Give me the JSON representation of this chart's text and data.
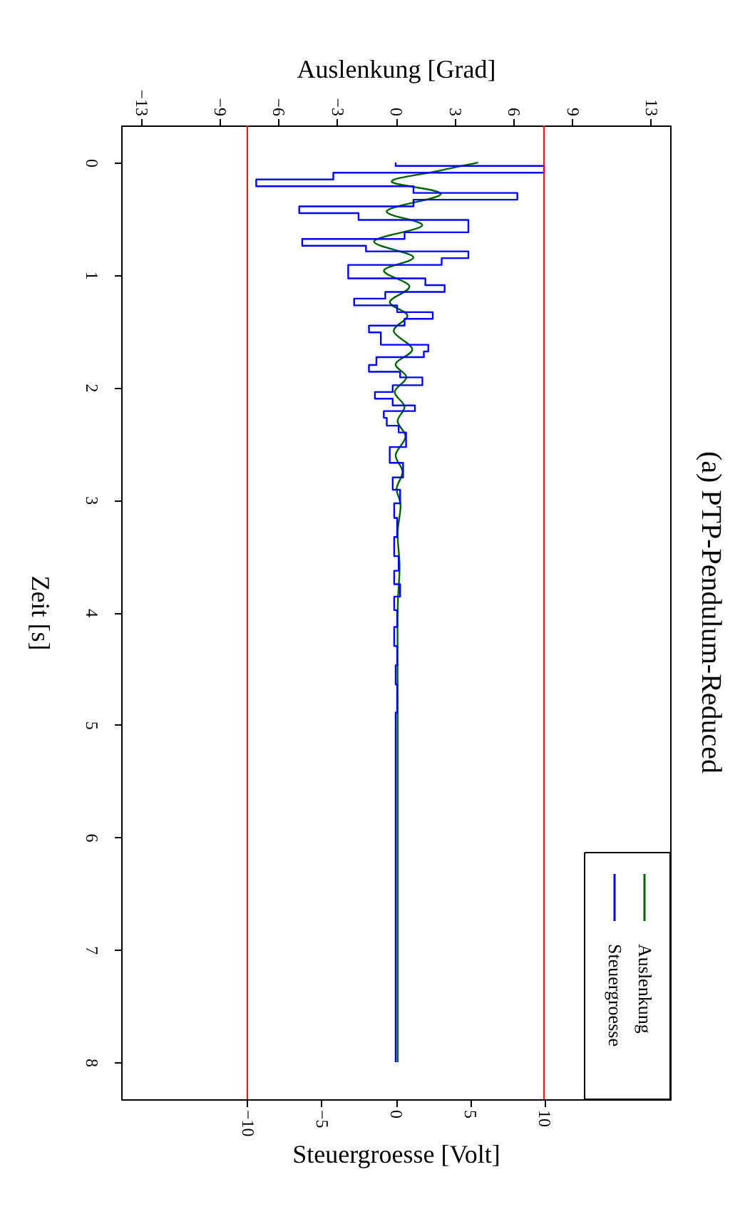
{
  "chart_data": {
    "type": "line",
    "title": "(a) PTP-Pendulum-Reduced",
    "ylabel": "Zeit [s]",
    "x2label": "Auslenkung [Grad]",
    "xlabel": "Steuergroesse [Volt]",
    "ylim": [
      8.33,
      -0.33
    ],
    "yticks": [
      0,
      1,
      2,
      3,
      4,
      5,
      6,
      7,
      8
    ],
    "x2lim": [
      -14,
      14
    ],
    "x2ticks": [
      -13,
      -9,
      -6,
      -3,
      0,
      3,
      6,
      9,
      13
    ],
    "xlim": [
      -18.5,
      18.5
    ],
    "xticks": [
      -10,
      -5,
      0,
      5,
      10
    ],
    "series": [
      {
        "name": "Auslenkung",
        "color": "#006400",
        "type": "line",
        "axis": "x2",
        "values": [
          0,
          0.08,
          0.17,
          0.28,
          0.43,
          0.56,
          0.7,
          0.84,
          0.96,
          1.1,
          1.24,
          1.36,
          1.5,
          1.66,
          1.79,
          1.91,
          2.04,
          2.17,
          2.3,
          2.44,
          2.6,
          2.75,
          2.9,
          3.05,
          3.3,
          3.6,
          4,
          5,
          8
        ],
        "x": [
          4.2,
          2.0,
          -0.2,
          2.3,
          -0.45,
          1.35,
          -1.1,
          0.9,
          -0.6,
          0.7,
          -0.3,
          0.6,
          -0.1,
          0.85,
          0,
          0.55,
          -0.05,
          0.45,
          0.1,
          0.5,
          0,
          0.35,
          0.05,
          0.25,
          0.1,
          0.2,
          0.1,
          0.1,
          0.1
        ]
      },
      {
        "name": "Steuergroesse",
        "color": "#0000ff",
        "type": "step",
        "values": [
          0,
          0.03,
          0.09,
          0.15,
          0.21,
          0.27,
          0.33,
          0.39,
          0.45,
          0.51,
          0.62,
          0.68,
          0.74,
          0.79,
          0.85,
          0.91,
          1.03,
          1.09,
          1.15,
          1.21,
          1.27,
          1.33,
          1.39,
          1.45,
          1.51,
          1.62,
          1.68,
          1.73,
          1.8,
          1.86,
          1.91,
          1.98,
          2.04,
          2.1,
          2.16,
          2.21,
          2.27,
          2.34,
          2.4,
          2.53,
          2.67,
          2.8,
          2.91,
          3.03,
          3.16,
          3.33,
          3.5,
          3.63,
          3.75,
          3.86,
          3.98,
          4.13,
          4.3,
          4.47,
          4.64,
          4.89,
          8
        ],
        "x": [
          0,
          10,
          -4.2,
          -9.4,
          1.2,
          8.2,
          1.2,
          -6.5,
          -2.5,
          4.9,
          0.6,
          -6.3,
          -2.0,
          4.9,
          3.1,
          -3.2,
          2.0,
          3.3,
          -0.7,
          -2.8,
          0.1,
          2.5,
          0.6,
          -1.8,
          -1.0,
          2.2,
          1.9,
          -1.3,
          -1.8,
          0.3,
          1.8,
          -0.2,
          -1.4,
          -0.2,
          1.3,
          -0.8,
          -0.6,
          0.2,
          0.7,
          -0.4,
          0.5,
          -0.2,
          0.3,
          -0.1,
          0.1,
          -0.1,
          0.2,
          -0.1,
          0.3,
          -0.1,
          0.1,
          -0.1,
          0.1,
          0,
          0.1,
          0,
          0
        ]
      }
    ],
    "ref_lines": [
      {
        "axis": "x",
        "value": -10,
        "color": "#ff0000"
      },
      {
        "axis": "x",
        "value": 10,
        "color": "#ff0000"
      }
    ],
    "legend": "bottom right",
    "grid": false
  }
}
